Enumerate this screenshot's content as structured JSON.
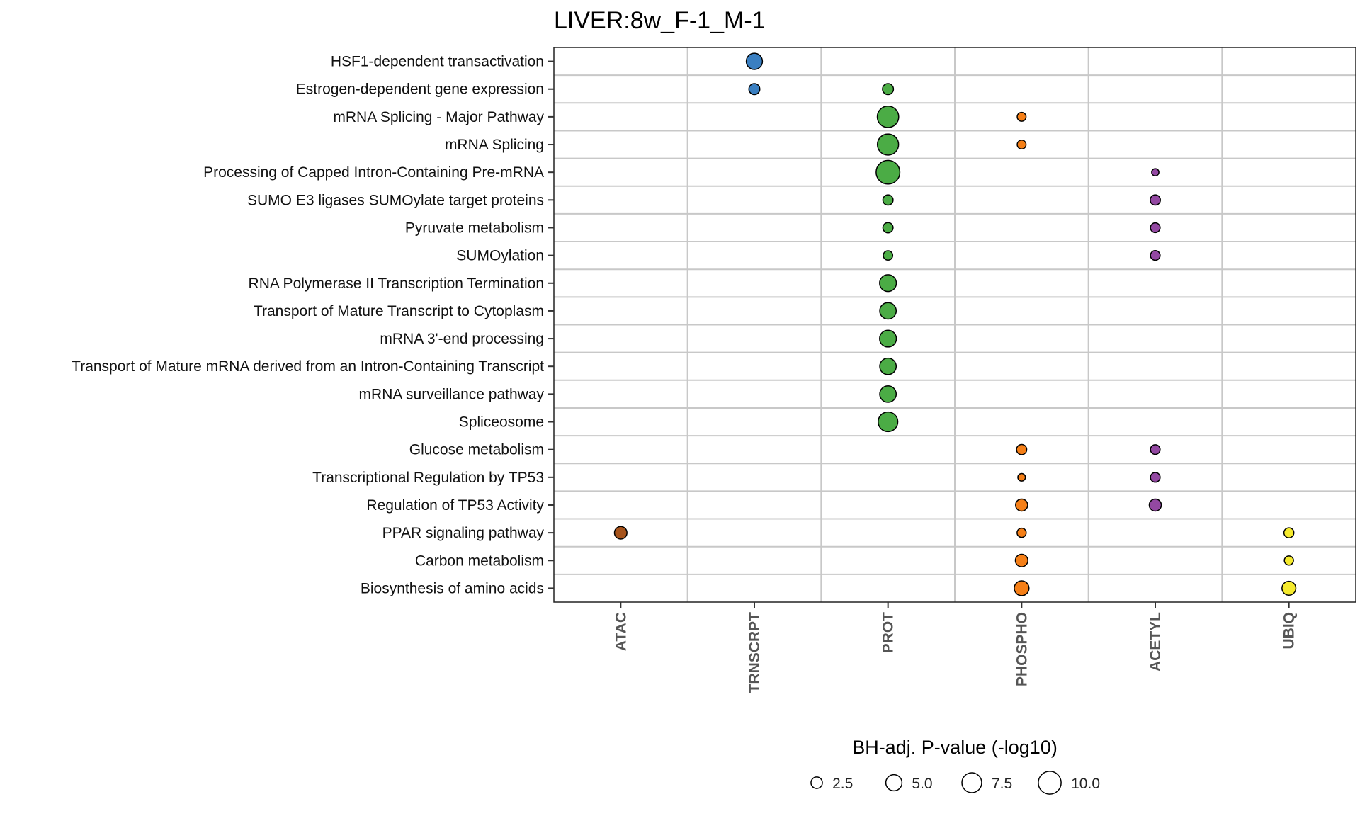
{
  "chart_data": {
    "type": "scatter",
    "title": "LIVER:8w_F-1_M-1",
    "columns": [
      "ATAC",
      "TRNSCRPT",
      "PROT",
      "PHOSPHO",
      "ACETYL",
      "UBIQ"
    ],
    "rows": [
      "HSF1-dependent transactivation",
      "Estrogen-dependent gene expression",
      "mRNA Splicing - Major Pathway",
      "mRNA Splicing",
      "Processing of Capped Intron-Containing Pre-mRNA",
      "SUMO E3 ligases SUMOylate target proteins",
      "Pyruvate metabolism",
      "SUMOylation",
      "RNA Polymerase II Transcription Termination",
      "Transport of Mature Transcript to Cytoplasm",
      "mRNA 3'-end processing",
      "Transport of Mature mRNA derived from an Intron-Containing Transcript",
      "mRNA surveillance pathway",
      "Spliceosome",
      "Glucose metabolism",
      "Transcriptional Regulation by TP53",
      "Regulation of TP53 Activity",
      "PPAR signaling pathway",
      "Carbon metabolism",
      "Biosynthesis of amino acids"
    ],
    "column_colors": {
      "ATAC": "#a6531b",
      "TRNSCRPT": "#3a7fc1",
      "PROT": "#4bac45",
      "PHOSPHO": "#f57f17",
      "ACETYL": "#9348a2",
      "UBIQ": "#f5ea2d"
    },
    "points": [
      {
        "row": "HSF1-dependent transactivation",
        "column": "TRNSCRPT",
        "value": 5.0
      },
      {
        "row": "Estrogen-dependent gene expression",
        "column": "TRNSCRPT",
        "value": 2.3
      },
      {
        "row": "Estrogen-dependent gene expression",
        "column": "PROT",
        "value": 2.3
      },
      {
        "row": "mRNA Splicing - Major Pathway",
        "column": "PROT",
        "value": 8.8
      },
      {
        "row": "mRNA Splicing - Major Pathway",
        "column": "PHOSPHO",
        "value": 1.5
      },
      {
        "row": "mRNA Splicing",
        "column": "PROT",
        "value": 8.6
      },
      {
        "row": "mRNA Splicing",
        "column": "PHOSPHO",
        "value": 1.5
      },
      {
        "row": "Processing of Capped Intron-Containing Pre-mRNA",
        "column": "PROT",
        "value": 10.8
      },
      {
        "row": "Processing of Capped Intron-Containing Pre-mRNA",
        "column": "ACETYL",
        "value": 1.0
      },
      {
        "row": "SUMO E3 ligases SUMOylate target proteins",
        "column": "PROT",
        "value": 2.0
      },
      {
        "row": "SUMO E3 ligases SUMOylate target proteins",
        "column": "ACETYL",
        "value": 2.0
      },
      {
        "row": "Pyruvate metabolism",
        "column": "PROT",
        "value": 2.0
      },
      {
        "row": "Pyruvate metabolism",
        "column": "ACETYL",
        "value": 1.8
      },
      {
        "row": "SUMOylation",
        "column": "PROT",
        "value": 1.7
      },
      {
        "row": "SUMOylation",
        "column": "ACETYL",
        "value": 1.8
      },
      {
        "row": "RNA Polymerase II Transcription Termination",
        "column": "PROT",
        "value": 5.4
      },
      {
        "row": "Transport of Mature Transcript to Cytoplasm",
        "column": "PROT",
        "value": 5.2
      },
      {
        "row": "mRNA 3'-end processing",
        "column": "PROT",
        "value": 5.4
      },
      {
        "row": "Transport of Mature mRNA derived from an Intron-Containing Transcript",
        "column": "PROT",
        "value": 5.2
      },
      {
        "row": "mRNA surveillance pathway",
        "column": "PROT",
        "value": 5.2
      },
      {
        "row": "Spliceosome",
        "column": "PROT",
        "value": 7.4
      },
      {
        "row": "Glucose metabolism",
        "column": "PHOSPHO",
        "value": 2.0
      },
      {
        "row": "Glucose metabolism",
        "column": "ACETYL",
        "value": 1.8
      },
      {
        "row": "Transcriptional Regulation by TP53",
        "column": "PHOSPHO",
        "value": 1.1
      },
      {
        "row": "Transcriptional Regulation by TP53",
        "column": "ACETYL",
        "value": 1.8
      },
      {
        "row": "Regulation of TP53 Activity",
        "column": "PHOSPHO",
        "value": 2.8
      },
      {
        "row": "Regulation of TP53 Activity",
        "column": "ACETYL",
        "value": 2.8
      },
      {
        "row": "PPAR signaling pathway",
        "column": "ATAC",
        "value": 3.0
      },
      {
        "row": "PPAR signaling pathway",
        "column": "PHOSPHO",
        "value": 1.6
      },
      {
        "row": "PPAR signaling pathway",
        "column": "UBIQ",
        "value": 1.9
      },
      {
        "row": "Carbon metabolism",
        "column": "PHOSPHO",
        "value": 3.0
      },
      {
        "row": "Carbon metabolism",
        "column": "UBIQ",
        "value": 1.6
      },
      {
        "row": "Biosynthesis of amino acids",
        "column": "PHOSPHO",
        "value": 4.2
      },
      {
        "row": "Biosynthesis of amino acids",
        "column": "UBIQ",
        "value": 3.7
      }
    ],
    "size_legend": {
      "title": "BH-adj. P-value (-log10)",
      "values": [
        2.5,
        5.0,
        7.5,
        10.0
      ],
      "labels": [
        "2.5",
        "5.0",
        "7.5",
        "10.0"
      ],
      "placement": "bottom"
    },
    "grid": true
  }
}
